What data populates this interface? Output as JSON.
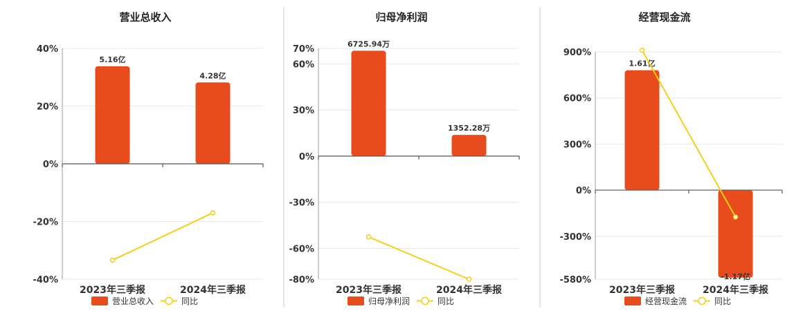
{
  "chart_data": [
    {
      "type": "bar",
      "title": "营业总收入",
      "categories": [
        "2023年三季报",
        "2024年三季报"
      ],
      "series": [
        {
          "name": "营业总收入",
          "type": "bar",
          "values": [
            33.8,
            28.2
          ],
          "labels": [
            "5.16亿",
            "4.28亿"
          ]
        },
        {
          "name": "同比",
          "type": "line",
          "values": [
            -33.4,
            -17.0
          ]
        }
      ],
      "y_ticks": [
        40,
        20,
        0,
        -20,
        -40
      ],
      "tick_suffix": "%",
      "ylim": [
        -40,
        40
      ],
      "legend": "bottom",
      "colors": {
        "bar": "#e84c1d",
        "line": "#f2cf1a"
      }
    },
    {
      "type": "bar",
      "title": "归母净利润",
      "categories": [
        "2023年三季报",
        "2024年三季报"
      ],
      "series": [
        {
          "name": "归母净利润",
          "type": "bar",
          "values": [
            68.5,
            13.8
          ],
          "labels": [
            "6725.94万",
            "1352.28万"
          ]
        },
        {
          "name": "同比",
          "type": "line",
          "values": [
            -52.5,
            -80.0
          ]
        }
      ],
      "y_ticks": [
        70,
        60,
        30,
        0,
        -30,
        -60,
        -80
      ],
      "tick_suffix": "%",
      "ylim": [
        -80,
        70
      ],
      "legend": "bottom",
      "colors": {
        "bar": "#e84c1d",
        "line": "#f2cf1a"
      }
    },
    {
      "type": "bar",
      "title": "经营现金流",
      "categories": [
        "2023年三季报",
        "2024年三季报"
      ],
      "series": [
        {
          "name": "经营现金流",
          "type": "bar",
          "values": [
            780,
            -570
          ],
          "labels": [
            "1.61亿",
            "-1.17亿"
          ]
        },
        {
          "name": "同比",
          "type": "line",
          "values": [
            910,
            -175
          ]
        }
      ],
      "y_ticks": [
        900,
        600,
        300,
        0,
        -300,
        -580
      ],
      "tick_suffix": "%",
      "ylim": [
        -580,
        900
      ],
      "legend": "bottom",
      "colors": {
        "bar": "#e84c1d",
        "line": "#f2cf1a"
      }
    }
  ]
}
